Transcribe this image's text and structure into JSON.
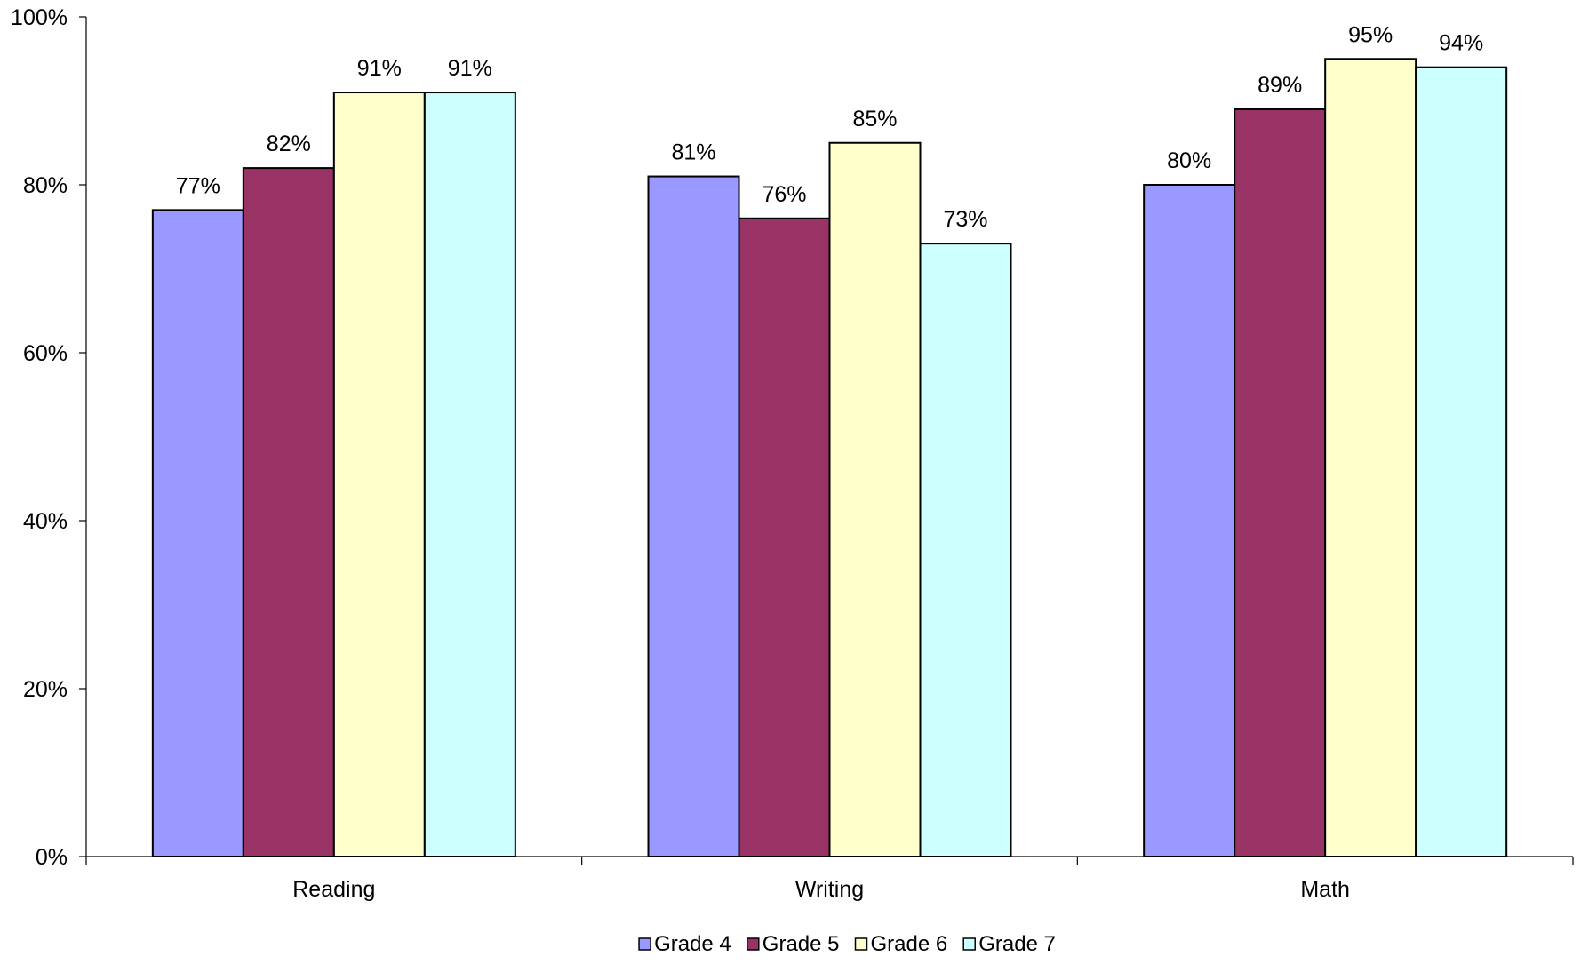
{
  "chart_data": {
    "type": "bar",
    "categories": [
      "Reading",
      "Writing",
      "Math"
    ],
    "series": [
      {
        "name": "Grade 4",
        "values": [
          77,
          81,
          80
        ],
        "color": "#9999ff"
      },
      {
        "name": "Grade 5",
        "values": [
          82,
          76,
          89
        ],
        "color": "#993366"
      },
      {
        "name": "Grade 6",
        "values": [
          91,
          85,
          95
        ],
        "color": "#ffffcc"
      },
      {
        "name": "Grade 7",
        "values": [
          91,
          73,
          94
        ],
        "color": "#ccffff"
      }
    ],
    "data_labels": [
      [
        "77%",
        "81%",
        "80%"
      ],
      [
        "82%",
        "76%",
        "89%"
      ],
      [
        "91%",
        "85%",
        "95%"
      ],
      [
        "91%",
        "73%",
        "94%"
      ]
    ],
    "title": "",
    "xlabel": "",
    "ylabel": "",
    "ylim": [
      0,
      100
    ],
    "y_ticks": [
      0,
      20,
      40,
      60,
      80,
      100
    ],
    "y_tick_labels": [
      "0%",
      "20%",
      "40%",
      "60%",
      "80%",
      "100%"
    ],
    "grid": false,
    "legend": {
      "position": "bottom"
    }
  }
}
